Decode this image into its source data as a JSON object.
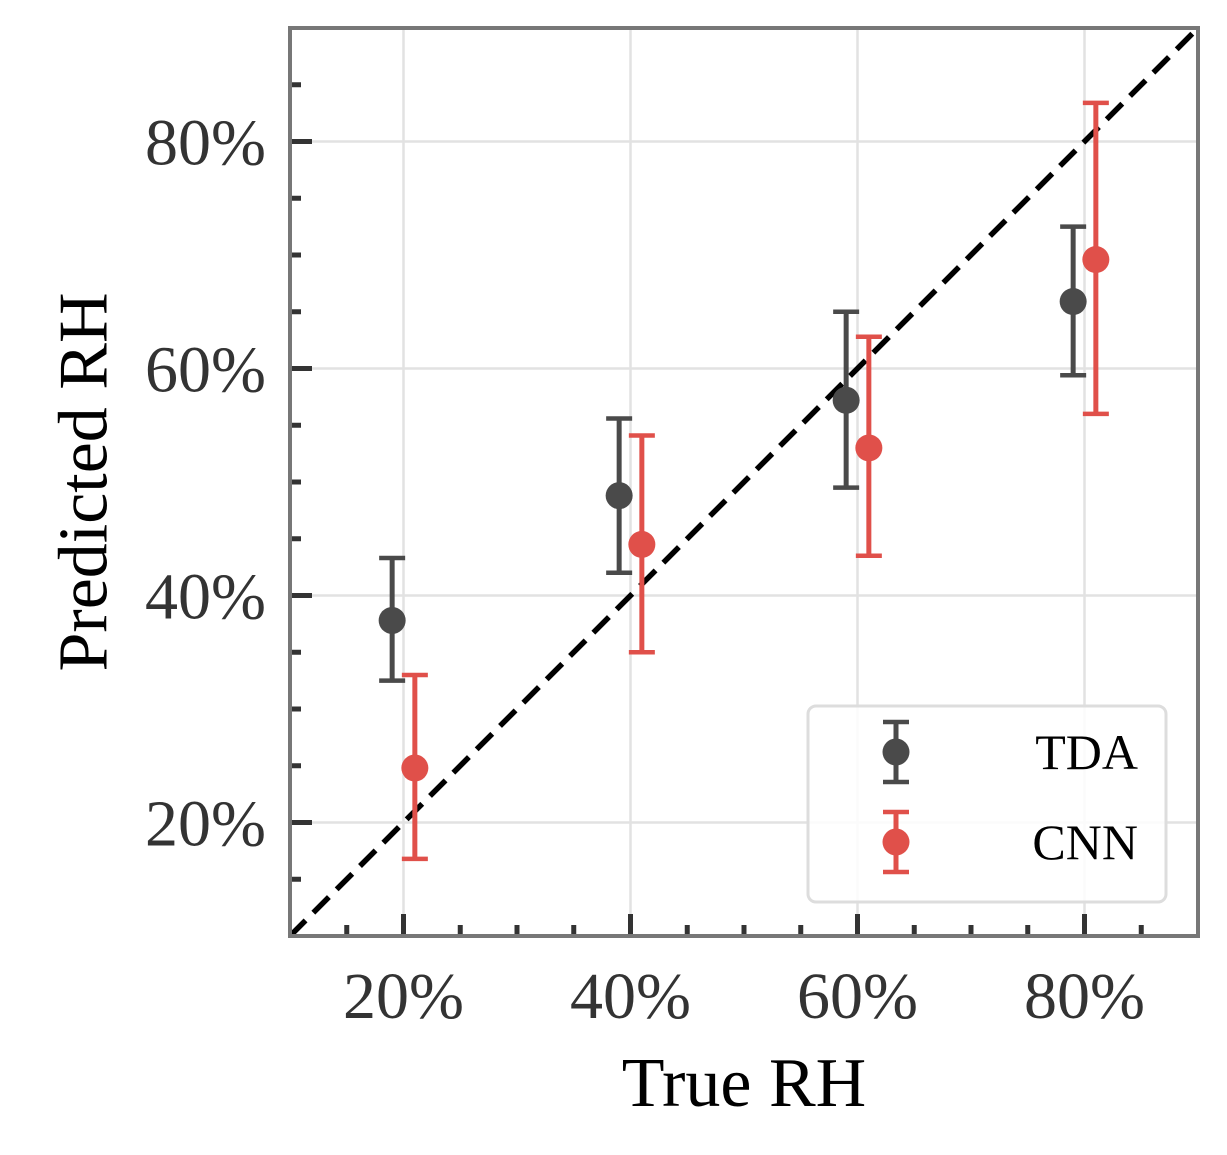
{
  "chart_data": {
    "type": "scatter",
    "title": "",
    "xlabel": "True RH",
    "ylabel": "Predicted RH",
    "xlim": [
      10,
      90
    ],
    "ylim": [
      10,
      90
    ],
    "xticks": [
      20,
      40,
      60,
      80
    ],
    "yticks": [
      20,
      40,
      60,
      80
    ],
    "xtick_labels": [
      "20%",
      "40%",
      "60%",
      "80%"
    ],
    "ytick_labels": [
      "20%",
      "40%",
      "60%",
      "80%"
    ],
    "grid": true,
    "reference_line": "y = x",
    "legend_placement": "bottom-right",
    "series": [
      {
        "name": "TDA",
        "color": "#4a4a4a",
        "x": [
          19,
          39,
          59,
          79
        ],
        "y": [
          37.8,
          48.8,
          57.2,
          65.9
        ],
        "yerr_low": [
          32.5,
          42.0,
          49.5,
          59.4
        ],
        "yerr_high": [
          43.3,
          55.6,
          65.0,
          72.5
        ]
      },
      {
        "name": "CNN",
        "color": "#e0504a",
        "x": [
          21,
          41,
          61,
          81
        ],
        "y": [
          24.8,
          44.5,
          53.0,
          69.6
        ],
        "yerr_low": [
          16.8,
          35.0,
          43.5,
          56.0
        ],
        "yerr_high": [
          33.0,
          54.1,
          62.8,
          83.4
        ]
      }
    ]
  }
}
